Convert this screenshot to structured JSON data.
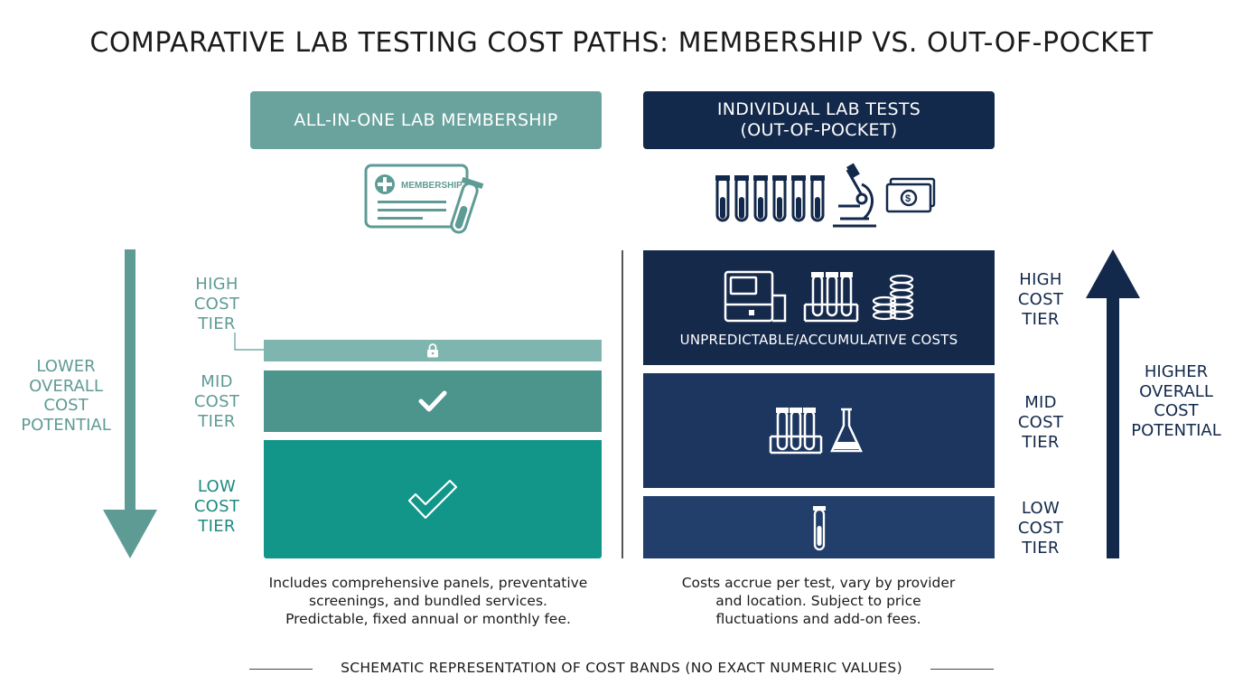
{
  "title": "COMPARATIVE LAB TESTING COST PATHS: MEMBERSHIP VS. OUT-OF-POCKET",
  "left": {
    "header": "ALL-IN-ONE LAB MEMBERSHIP",
    "icon_card_text": "MEMBERSHIP",
    "side_label": [
      "LOWER",
      "OVERALL",
      "COST",
      "POTENTIAL"
    ],
    "tiers": {
      "high": [
        "HIGH",
        "COST",
        "TIER"
      ],
      "mid": [
        "MID",
        "COST",
        "TIER"
      ],
      "low": [
        "LOW",
        "COST",
        "TIER"
      ]
    },
    "description": [
      "Includes comprehensive panels, preventative",
      "screenings, and bundled services.",
      "Predictable, fixed annual or monthly fee."
    ]
  },
  "right": {
    "header": [
      "INDIVIDUAL LAB TESTS",
      "(OUT-OF-POCKET)"
    ],
    "side_label": [
      "HIGHER",
      "OVERALL",
      "COST",
      "POTENTIAL"
    ],
    "tiers": {
      "high": [
        "HIGH",
        "COST",
        "TIER"
      ],
      "mid": [
        "MID",
        "COST",
        "TIER"
      ],
      "low": [
        "LOW",
        "COST",
        "TIER"
      ]
    },
    "high_band_text": "UNPREDICTABLE/ACCUMULATIVE COSTS",
    "description": [
      "Costs accrue per test, vary by provider",
      "and location. Subject to price",
      "fluctuations and add-on fees."
    ]
  },
  "footer": "SCHEMATIC REPRESENTATION OF COST BANDS (NO EXACT NUMERIC VALUES)",
  "colors": {
    "teal_header": "#6aa39d",
    "teal_high": "#7fb5af",
    "teal_mid": "#4b958c",
    "teal_low": "#12968a",
    "navy": "#13294b",
    "navy_mid": "#1c3660",
    "navy_low": "#223f6c"
  }
}
